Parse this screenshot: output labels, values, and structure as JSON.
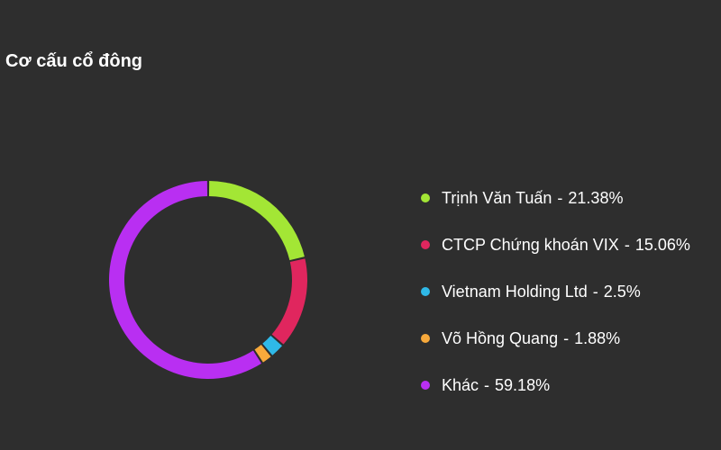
{
  "chart_data": {
    "type": "pie",
    "title": "Cơ cấu cổ đông",
    "legend_position": "right",
    "inner_ring": true,
    "slices": [
      {
        "label": "Trịnh Văn Tuấn",
        "value": 21.38,
        "display_value": "21.38%",
        "color": "#a3e635"
      },
      {
        "label": "CTCP Chứng khoán VIX",
        "value": 15.06,
        "display_value": "15.06%",
        "color": "#e0265e"
      },
      {
        "label": "Vietnam Holding Ltd",
        "value": 2.5,
        "display_value": "2.5%",
        "color": "#2fb9e8"
      },
      {
        "label": "Võ Hồng Quang",
        "value": 1.88,
        "display_value": "1.88%",
        "color": "#f7a93b"
      },
      {
        "label": "Khác",
        "value": 59.18,
        "display_value": "59.18%",
        "color": "#b92ff2"
      }
    ]
  }
}
